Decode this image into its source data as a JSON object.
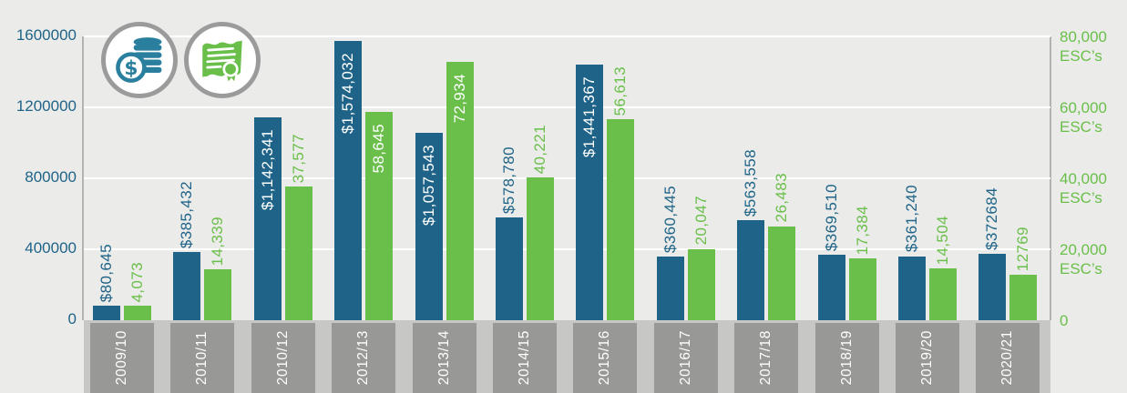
{
  "colors": {
    "background": "#ebebe9",
    "gridline": "#ffffff",
    "axis_line": "#b3b3b1",
    "band_light": "#c7c7c5",
    "band_dark": "#989896",
    "category_text": "#ffffff",
    "bar_blue": "#1f6488",
    "bar_green": "#6abf4a",
    "icon_ring": "#9b9b9b",
    "icon_teal": "#2a7f9e",
    "icon_green": "#6abf4a",
    "inside_label_text": "#ffffff"
  },
  "icons": [
    {
      "name": "money-icon",
      "depicts": "stack of coins with dollar-sign coin"
    },
    {
      "name": "certificate-icon",
      "depicts": "certificate scroll with ribbon seal"
    }
  ],
  "chart_data": {
    "type": "bar",
    "title": "",
    "grid": true,
    "legend_position": "icons-top-left",
    "categories": [
      "2009/10",
      "2010/11",
      "2010/12",
      "2012/13",
      "2013/14",
      "2014/15",
      "2015/16",
      "2016/17",
      "2017/18",
      "2018/19",
      "2019/20",
      "2020/21"
    ],
    "series": [
      {
        "name": "dollars",
        "axis": "left",
        "color": "#1f6488",
        "values": [
          80645,
          385432,
          1142341,
          1574032,
          1057543,
          578780,
          1441367,
          360445,
          563558,
          369510,
          361240,
          372684
        ],
        "labels": [
          "$80,645",
          "$385,432",
          "$1,142,341",
          "$1,574,032",
          "$1,057,543",
          "$578,780",
          "$1,441,367",
          "$360,445",
          "$563,558",
          "$369,510",
          "$361,240",
          "$372684"
        ],
        "label_inside": [
          false,
          false,
          true,
          true,
          true,
          false,
          true,
          false,
          false,
          false,
          false,
          false
        ]
      },
      {
        "name": "escs",
        "axis": "right",
        "color": "#6abf4a",
        "values": [
          4073,
          14339,
          37577,
          58645,
          72934,
          40221,
          56613,
          20047,
          26483,
          17384,
          14504,
          12769
        ],
        "labels": [
          "4,073",
          "14,339",
          "37,577",
          "58,645",
          "72,934",
          "40,221",
          "56,613",
          "20,047",
          "26,483",
          "17,384",
          "14,504",
          "12769"
        ],
        "label_inside": [
          false,
          false,
          false,
          true,
          true,
          false,
          false,
          false,
          false,
          false,
          false,
          false
        ]
      }
    ],
    "left_axis": {
      "max": 1600000,
      "ticks": [
        {
          "value": 1600000,
          "label": "1600000"
        },
        {
          "value": 1200000,
          "label": "1200000"
        },
        {
          "value": 800000,
          "label": "800000"
        },
        {
          "value": 400000,
          "label": "400000"
        },
        {
          "value": 0,
          "label": "0"
        }
      ]
    },
    "right_axis": {
      "max": 80000,
      "ticks": [
        {
          "value": 80000,
          "label": "80,000",
          "unit": "ESC’s"
        },
        {
          "value": 60000,
          "label": "60,000",
          "unit": "ESC’s"
        },
        {
          "value": 40000,
          "label": "40,000",
          "unit": "ESC’s"
        },
        {
          "value": 20000,
          "label": "20,000",
          "unit": "ESC’s"
        },
        {
          "value": 0,
          "label": "0",
          "unit": ""
        }
      ]
    }
  }
}
